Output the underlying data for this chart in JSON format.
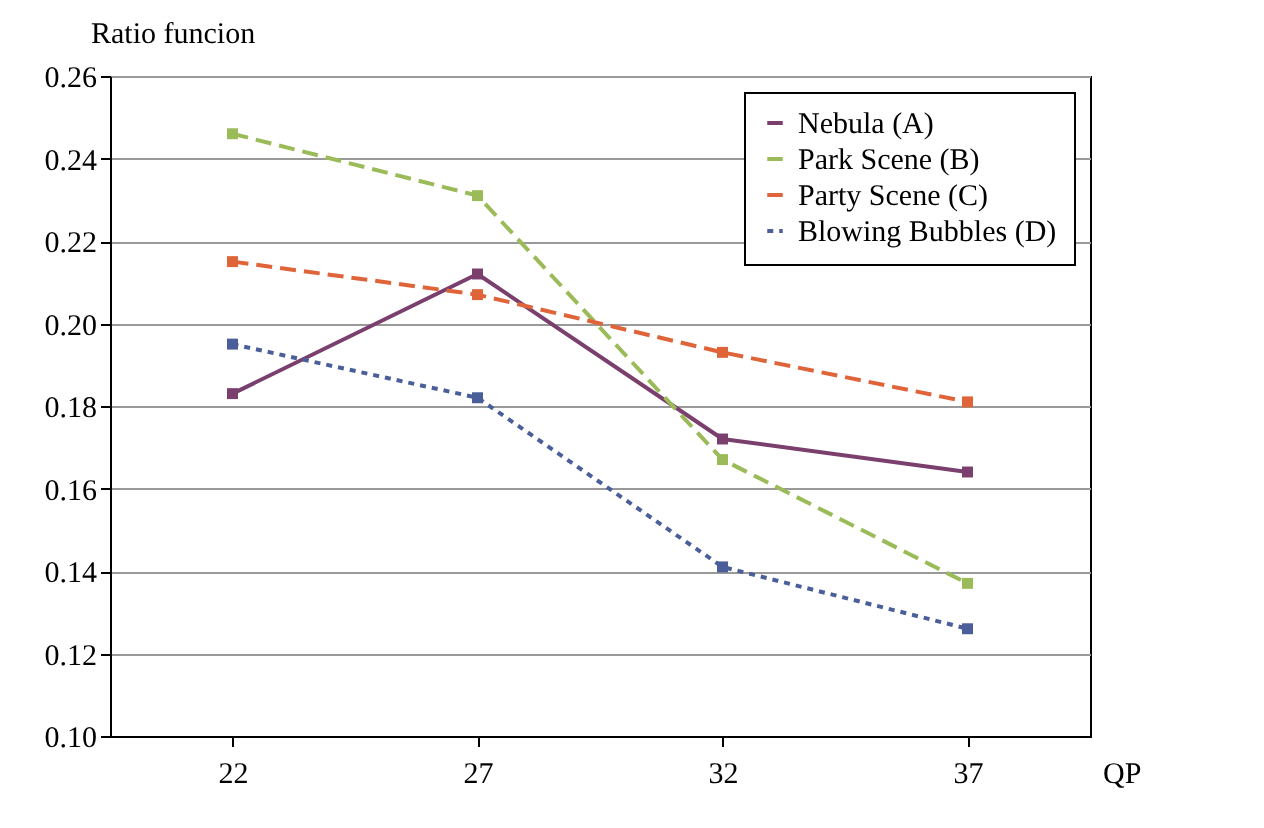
{
  "chart_data": {
    "type": "line",
    "xlabel": "QP",
    "ylabel": "Ratio funcion",
    "categories": [
      "22",
      "27",
      "32",
      "37"
    ],
    "series": [
      {
        "name": "Nebula (A)",
        "color": "#7b3f6e",
        "line_style": "solid",
        "values": [
          0.183,
          0.212,
          0.172,
          0.164
        ]
      },
      {
        "name": "Park Scene (B)",
        "color": "#9bbb59",
        "line_style": "dashed",
        "values": [
          0.246,
          0.231,
          0.167,
          0.137
        ]
      },
      {
        "name": "Party Scene (C)",
        "color": "#e0643a",
        "line_style": "dashed",
        "values": [
          0.215,
          0.207,
          0.193,
          0.181
        ]
      },
      {
        "name": "Blowing Bubbles (D)",
        "color": "#4a5e9a",
        "line_style": "dotted",
        "values": [
          0.195,
          0.182,
          0.141,
          0.126
        ]
      }
    ],
    "ylim": [
      0.1,
      0.26
    ],
    "yticks": [
      {
        "value": 0.1,
        "label": "0.10"
      },
      {
        "value": 0.12,
        "label": "0.12"
      },
      {
        "value": 0.14,
        "label": "0.14"
      },
      {
        "value": 0.16,
        "label": "0.16"
      },
      {
        "value": 0.18,
        "label": "0.18"
      },
      {
        "value": 0.2,
        "label": "0.20"
      },
      {
        "value": 0.22,
        "label": "0.22"
      },
      {
        "value": 0.24,
        "label": "0.24"
      },
      {
        "value": 0.26,
        "label": "0.26"
      }
    ],
    "grid": "y",
    "legend": "top right",
    "marker": "square"
  }
}
